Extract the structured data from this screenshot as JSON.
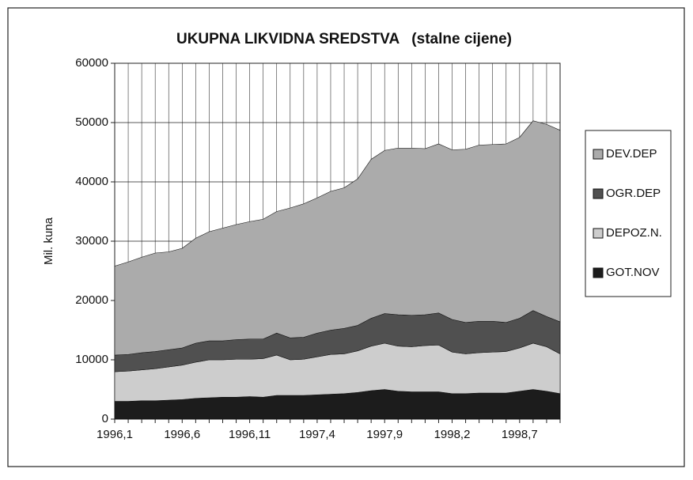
{
  "chart_data": {
    "type": "stacked_area",
    "title": "UKUPNA LIKVIDNA SREDSTVA   (stalne cijene)",
    "y_label": "Mil. kuna",
    "categories": [
      "1996,1",
      null,
      null,
      null,
      null,
      "1996,6",
      null,
      null,
      null,
      null,
      "1996,11",
      null,
      null,
      null,
      null,
      "1997,4",
      null,
      null,
      null,
      null,
      "1997,9",
      null,
      null,
      null,
      null,
      "1998,2",
      null,
      null,
      null,
      null,
      "1998,7",
      null,
      null,
      null
    ],
    "series": [
      {
        "name": "GOT.NOV",
        "color": "#1c1c1c",
        "values": [
          3000,
          3000,
          3100,
          3100,
          3200,
          3300,
          3500,
          3600,
          3700,
          3700,
          3800,
          3700,
          4000,
          4000,
          4000,
          4100,
          4200,
          4300,
          4500,
          4800,
          5000,
          4700,
          4600,
          4600,
          4600,
          4300,
          4300,
          4400,
          4400,
          4400,
          4700,
          5000,
          4700,
          4300
        ]
      },
      {
        "name": "DEPOZ.N.",
        "color": "#cdcdcd",
        "values": [
          5000,
          5100,
          5200,
          5400,
          5600,
          5800,
          6100,
          6400,
          6300,
          6400,
          6300,
          6500,
          6800,
          6000,
          6100,
          6400,
          6700,
          6700,
          7000,
          7500,
          7800,
          7600,
          7600,
          7800,
          7900,
          7000,
          6700,
          6800,
          6900,
          7000,
          7300,
          7800,
          7500,
          6700
        ]
      },
      {
        "name": "OGR.DEP",
        "color": "#505050",
        "values": [
          2800,
          2800,
          2900,
          2900,
          2900,
          2900,
          3200,
          3200,
          3200,
          3300,
          3400,
          3300,
          3700,
          3700,
          3700,
          4000,
          4100,
          4300,
          4300,
          4700,
          5000,
          5300,
          5300,
          5200,
          5400,
          5500,
          5300,
          5300,
          5200,
          4900,
          5000,
          5500,
          5100,
          5400
        ]
      },
      {
        "name": "DEV.DEP",
        "color": "#ababab",
        "values": [
          15000,
          15600,
          16100,
          16600,
          16500,
          16800,
          17700,
          18400,
          19000,
          19400,
          19800,
          20200,
          20500,
          21900,
          22500,
          22800,
          23400,
          23700,
          24700,
          26800,
          27500,
          28100,
          28200,
          28000,
          28500,
          28600,
          29200,
          29700,
          29800,
          30100,
          30500,
          32000,
          32400,
          32300
        ]
      }
    ],
    "ylim": [
      0,
      60000
    ],
    "yticks": [
      0,
      10000,
      20000,
      30000,
      40000,
      50000,
      60000
    ],
    "grid": true,
    "legend": "right"
  }
}
